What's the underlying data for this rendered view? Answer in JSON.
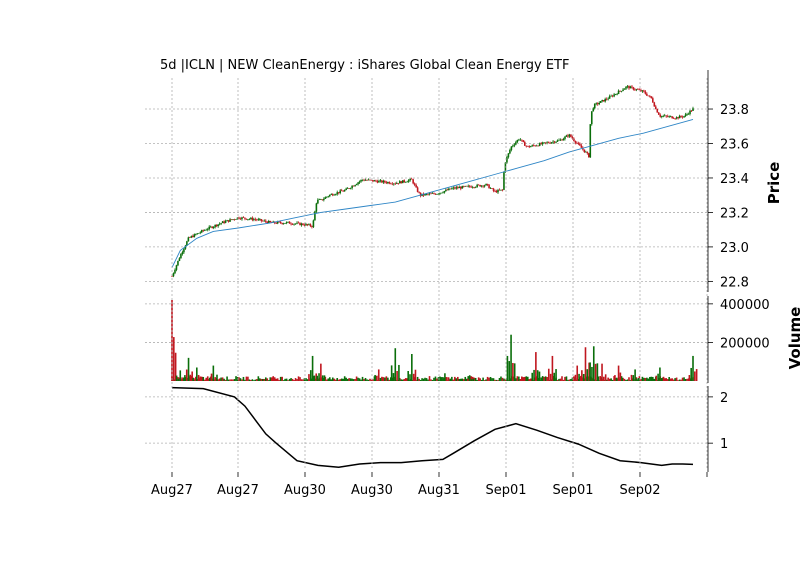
{
  "chart_data": {
    "type": "candlestick",
    "title": "5d |ICLN | NEW CleanEnergy : iShares Global Clean Energy ETF",
    "colors": {
      "up": "#0a6e0a",
      "down": "#c0171f",
      "ma": "#2f86c6",
      "indicator": "#000000",
      "grid": "#b0b0b0"
    },
    "grid": true,
    "x_tick_labels": [
      "Aug27",
      "Aug27",
      "Aug30",
      "Aug30",
      "Aug31",
      "Sep01",
      "Sep01",
      "Sep02",
      ""
    ],
    "price_panel": {
      "ylabel": "Price",
      "ylim": [
        22.75,
        23.98
      ],
      "y_ticks": [
        22.8,
        23.0,
        23.2,
        23.4,
        23.6,
        23.8
      ],
      "y_tick_labels": [
        "22.8",
        "23.0",
        "23.2",
        "23.4",
        "23.6",
        "23.8"
      ],
      "close_path": [
        [
          0,
          22.83
        ],
        [
          1,
          22.95
        ],
        [
          2,
          23.05
        ],
        [
          4,
          23.1
        ],
        [
          6,
          23.14
        ],
        [
          8,
          23.17
        ],
        [
          10,
          23.16
        ],
        [
          12,
          23.14
        ],
        [
          14,
          23.14
        ],
        [
          16,
          23.13
        ],
        [
          17,
          23.12
        ],
        [
          17.5,
          23.27
        ],
        [
          18,
          23.27
        ],
        [
          19,
          23.3
        ],
        [
          21,
          23.33
        ],
        [
          23,
          23.39
        ],
        [
          25,
          23.38
        ],
        [
          27,
          23.37
        ],
        [
          29,
          23.39
        ],
        [
          29.5,
          23.34
        ],
        [
          30,
          23.3
        ],
        [
          32,
          23.31
        ],
        [
          34,
          23.34
        ],
        [
          36,
          23.35
        ],
        [
          38,
          23.36
        ],
        [
          38.5,
          23.34
        ],
        [
          39,
          23.32
        ],
        [
          40,
          23.33
        ],
        [
          40.2,
          23.48
        ],
        [
          41,
          23.58
        ],
        [
          42,
          23.63
        ],
        [
          42.5,
          23.6
        ],
        [
          43,
          23.58
        ],
        [
          45,
          23.6
        ],
        [
          47,
          23.62
        ],
        [
          48,
          23.65
        ],
        [
          49,
          23.6
        ],
        [
          50,
          23.55
        ],
        [
          50.5,
          23.52
        ],
        [
          50.6,
          23.76
        ],
        [
          51,
          23.82
        ],
        [
          53,
          23.87
        ],
        [
          55,
          23.93
        ],
        [
          57,
          23.9
        ],
        [
          58,
          23.86
        ],
        [
          58.5,
          23.8
        ],
        [
          59,
          23.76
        ],
        [
          61,
          23.75
        ],
        [
          62,
          23.76
        ],
        [
          63,
          23.8
        ]
      ],
      "moving_average": [
        [
          0,
          22.88
        ],
        [
          1,
          22.98
        ],
        [
          3,
          23.05
        ],
        [
          5,
          23.09
        ],
        [
          8,
          23.11
        ],
        [
          12,
          23.14
        ],
        [
          15,
          23.17
        ],
        [
          18,
          23.2
        ],
        [
          21,
          23.22
        ],
        [
          24,
          23.24
        ],
        [
          27,
          23.26
        ],
        [
          30,
          23.3
        ],
        [
          33,
          23.34
        ],
        [
          36,
          23.38
        ],
        [
          39,
          23.42
        ],
        [
          42,
          23.46
        ],
        [
          45,
          23.5
        ],
        [
          48,
          23.55
        ],
        [
          51,
          23.59
        ],
        [
          54,
          23.63
        ],
        [
          57,
          23.66
        ],
        [
          60,
          23.7
        ],
        [
          63,
          23.74
        ]
      ]
    },
    "volume_panel": {
      "ylabel": "Volume",
      "ylim": [
        0,
        420000
      ],
      "y_ticks": [
        200000,
        400000
      ],
      "y_tick_labels": [
        "200000",
        "400000"
      ],
      "spikes": [
        [
          0,
          440000,
          "down"
        ],
        [
          1,
          55000,
          "up"
        ],
        [
          2,
          120000,
          "up"
        ],
        [
          3,
          70000,
          "up"
        ],
        [
          5,
          80000,
          "up"
        ],
        [
          17,
          130000,
          "up"
        ],
        [
          18,
          90000,
          "down"
        ],
        [
          25,
          60000,
          "down"
        ],
        [
          27,
          170000,
          "up"
        ],
        [
          29,
          140000,
          "up"
        ],
        [
          33,
          40000,
          "up"
        ],
        [
          36,
          30000,
          "up"
        ],
        [
          41,
          240000,
          "up"
        ],
        [
          44,
          150000,
          "down"
        ],
        [
          46,
          130000,
          "down"
        ],
        [
          49,
          80000,
          "down"
        ],
        [
          50,
          175000,
          "down"
        ],
        [
          51,
          180000,
          "up"
        ],
        [
          52,
          90000,
          "down"
        ],
        [
          54,
          80000,
          "down"
        ],
        [
          56,
          60000,
          "up"
        ],
        [
          59,
          70000,
          "up"
        ],
        [
          63,
          130000,
          "up"
        ]
      ]
    },
    "indicator_panel": {
      "ylim": [
        0.42,
        2.3
      ],
      "y_ticks": [
        1,
        2
      ],
      "y_tick_labels": [
        "1",
        "2"
      ],
      "series": [
        [
          0,
          2.2
        ],
        [
          3,
          2.18
        ],
        [
          6,
          2.0
        ],
        [
          7,
          1.8
        ],
        [
          9,
          1.2
        ],
        [
          10,
          1.0
        ],
        [
          12,
          0.62
        ],
        [
          14,
          0.52
        ],
        [
          16,
          0.48
        ],
        [
          18,
          0.55
        ],
        [
          20,
          0.58
        ],
        [
          22,
          0.58
        ],
        [
          24,
          0.62
        ],
        [
          26,
          0.65
        ],
        [
          27,
          0.78
        ],
        [
          29,
          1.05
        ],
        [
          31,
          1.3
        ],
        [
          33,
          1.42
        ],
        [
          35,
          1.28
        ],
        [
          37,
          1.12
        ],
        [
          39,
          0.98
        ],
        [
          41,
          0.78
        ],
        [
          43,
          0.62
        ],
        [
          45,
          0.58
        ],
        [
          47,
          0.52
        ],
        [
          48,
          0.55
        ],
        [
          49,
          0.55
        ],
        [
          50,
          0.54
        ]
      ]
    }
  }
}
